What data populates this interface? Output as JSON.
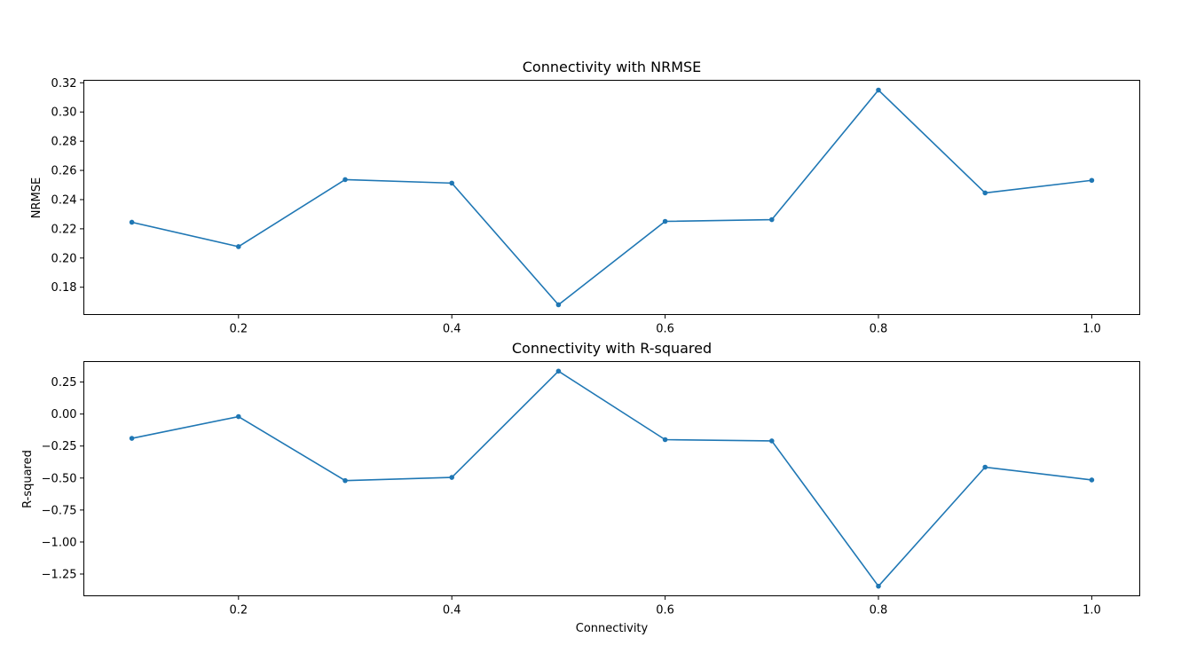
{
  "chart_data": [
    {
      "type": "line",
      "title": "Connectivity with NRMSE",
      "xlabel": "",
      "ylabel": "NRMSE",
      "x": [
        0.1,
        0.2,
        0.3,
        0.4,
        0.5,
        0.6,
        0.7,
        0.8,
        0.9,
        1.0
      ],
      "series": [
        {
          "name": "NRMSE",
          "values": [
            0.2245,
            0.2078,
            0.2537,
            0.2513,
            0.168,
            0.2251,
            0.2263,
            0.315,
            0.2446,
            0.2532
          ]
        }
      ],
      "xlim": [
        0.055,
        1.045
      ],
      "ylim": [
        0.1613,
        0.3217
      ],
      "xticks": [
        0.2,
        0.4,
        0.6,
        0.8,
        1.0
      ],
      "xtick_labels": [
        "0.2",
        "0.4",
        "0.6",
        "0.8",
        "1.0"
      ],
      "yticks": [
        0.18,
        0.2,
        0.22,
        0.24,
        0.26,
        0.28,
        0.3,
        0.32
      ],
      "ytick_labels": [
        "0.18",
        "0.20",
        "0.22",
        "0.24",
        "0.26",
        "0.28",
        "0.30",
        "0.32"
      ],
      "grid": false,
      "color": "#1f77b4",
      "marker": "dot"
    },
    {
      "type": "line",
      "title": "Connectivity with R-squared",
      "xlabel": "Connectivity",
      "ylabel": "R-squared",
      "x": [
        0.1,
        0.2,
        0.3,
        0.4,
        0.5,
        0.6,
        0.7,
        0.8,
        0.9,
        1.0
      ],
      "series": [
        {
          "name": "R-squared",
          "values": [
            -0.19,
            -0.02,
            -0.52,
            -0.495,
            0.335,
            -0.2,
            -0.21,
            -1.345,
            -0.415,
            -0.515
          ]
        }
      ],
      "xlim": [
        0.055,
        1.045
      ],
      "ylim": [
        -1.42,
        0.41
      ],
      "xticks": [
        0.2,
        0.4,
        0.6,
        0.8,
        1.0
      ],
      "xtick_labels": [
        "0.2",
        "0.4",
        "0.6",
        "0.8",
        "1.0"
      ],
      "yticks": [
        -1.25,
        -1.0,
        -0.75,
        -0.5,
        -0.25,
        0.0,
        0.25
      ],
      "ytick_labels": [
        "−1.25",
        "−1.00",
        "−0.75",
        "−0.50",
        "−0.25",
        "0.00",
        "0.25"
      ],
      "grid": false,
      "color": "#1f77b4",
      "marker": "dot"
    }
  ]
}
